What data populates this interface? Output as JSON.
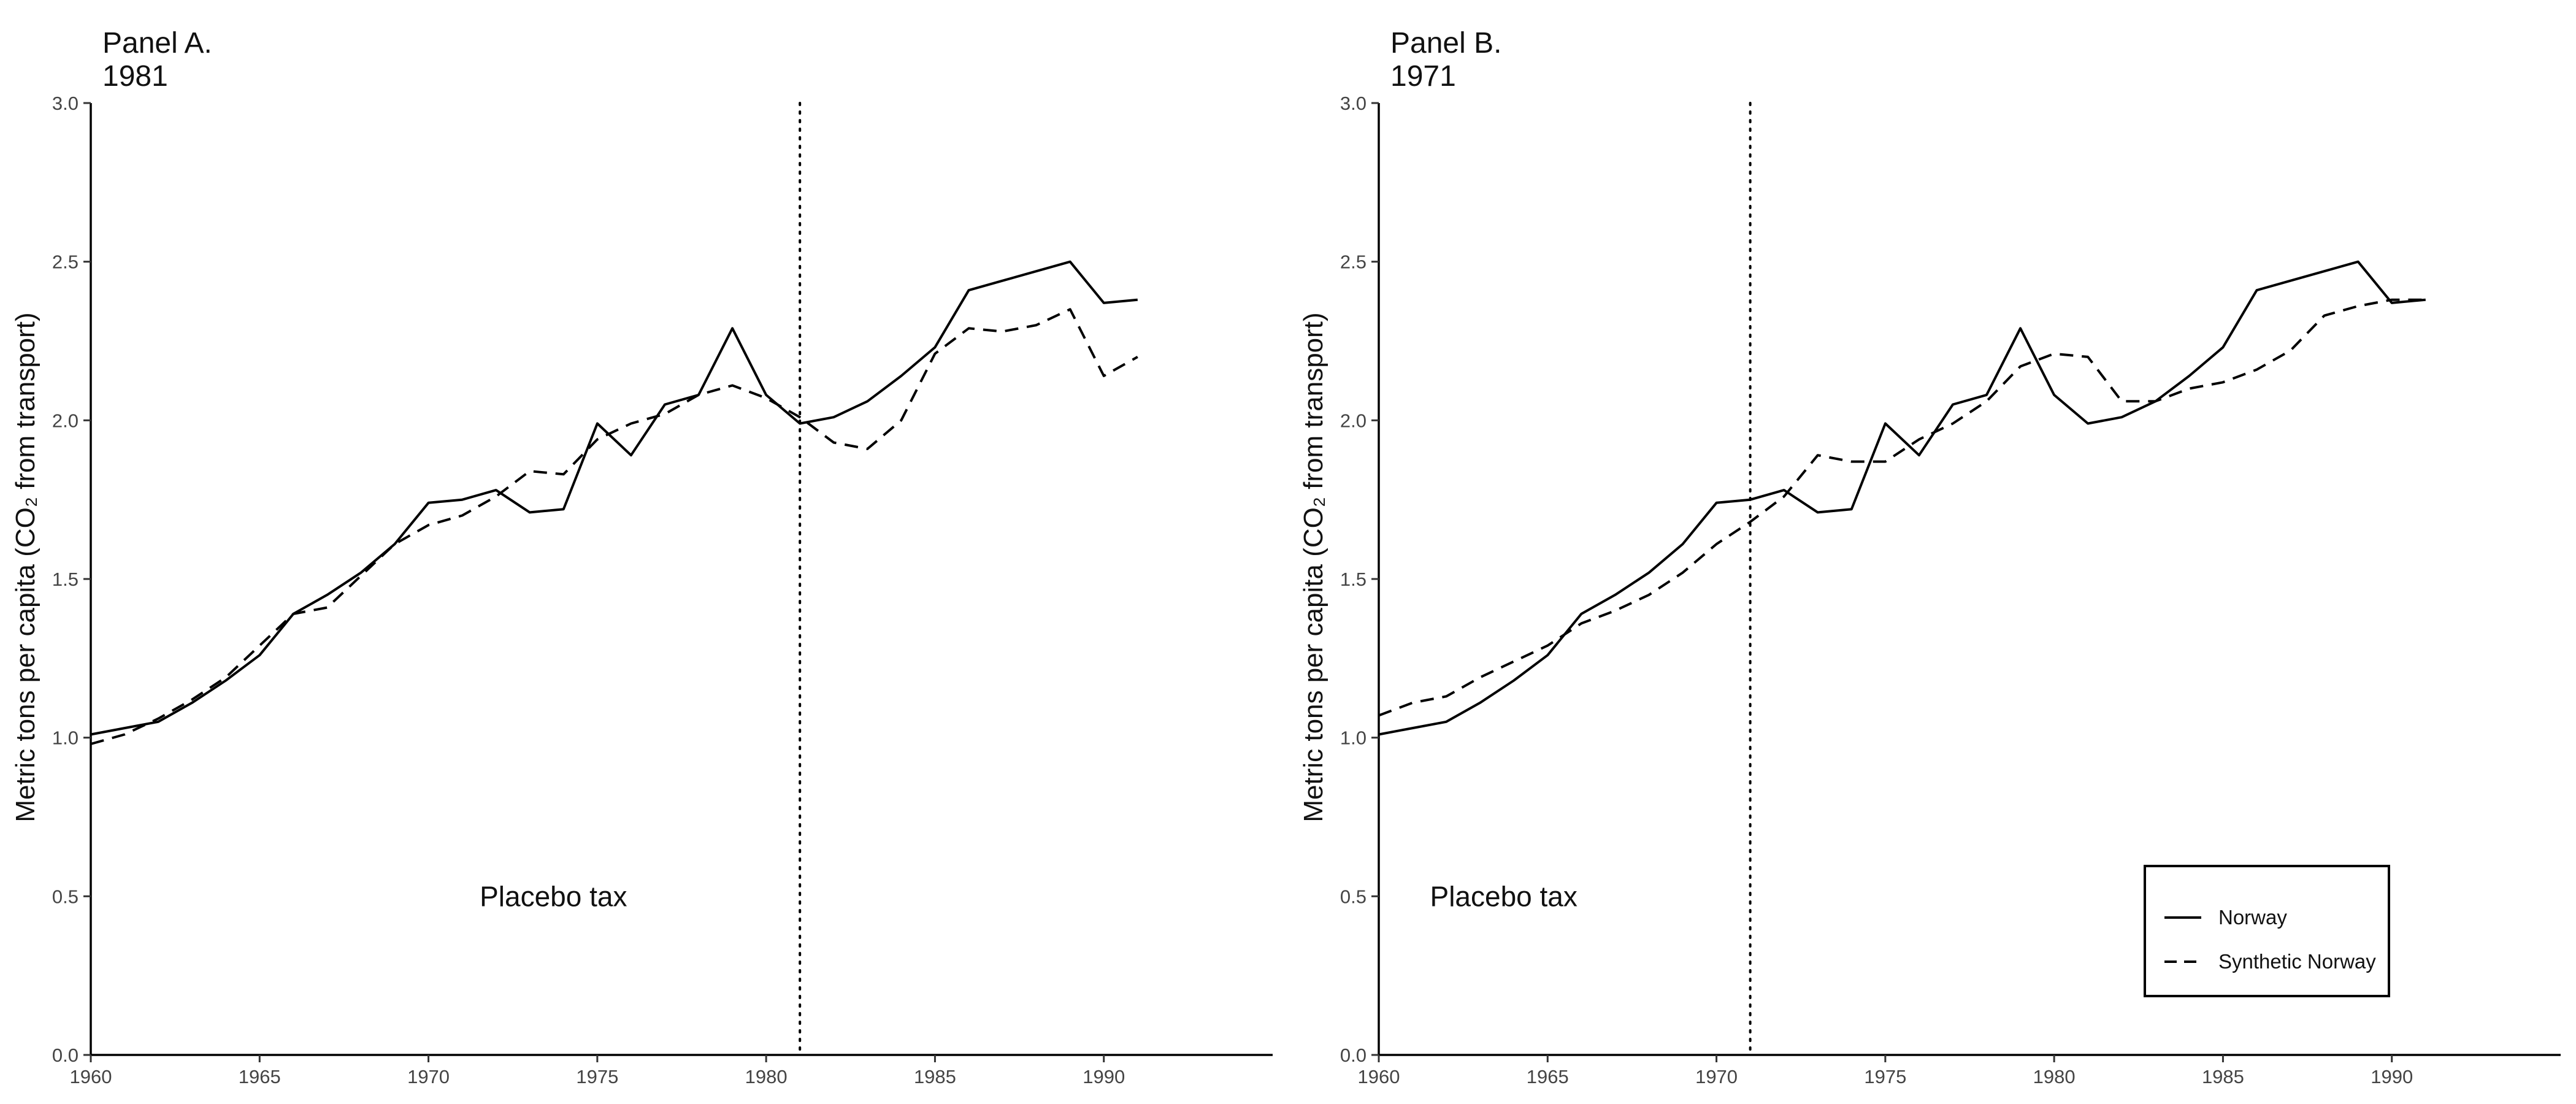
{
  "chart_data": [
    {
      "type": "line",
      "title": "Panel A.",
      "subtitle": "1981",
      "xlabel": "",
      "ylabel": "Metric tons per capita (CO₂ from transport)",
      "xlim": [
        1960,
        1995
      ],
      "ylim": [
        0,
        3.0
      ],
      "xticks": [
        1960,
        1965,
        1970,
        1975,
        1980,
        1985,
        1990
      ],
      "yticks": [
        "0.0",
        "0.5",
        "1.0",
        "1.5",
        "2.0",
        "2.5",
        "3.0"
      ],
      "grid": false,
      "reference_line": {
        "x": 1981,
        "style": "dotted"
      },
      "annotations": [
        {
          "text": "Placebo tax",
          "x": 1973.7,
          "y": 0.5
        }
      ],
      "legend": null,
      "x": [
        1960,
        1961,
        1962,
        1963,
        1964,
        1965,
        1966,
        1967,
        1968,
        1969,
        1970,
        1971,
        1972,
        1973,
        1974,
        1975,
        1976,
        1977,
        1978,
        1979,
        1980,
        1981,
        1982,
        1983,
        1984,
        1985,
        1986,
        1987,
        1988,
        1989,
        1990,
        1991
      ],
      "series": [
        {
          "name": "Norway",
          "style": "solid",
          "values": [
            1.01,
            1.03,
            1.05,
            1.11,
            1.18,
            1.26,
            1.39,
            1.45,
            1.52,
            1.61,
            1.74,
            1.75,
            1.78,
            1.71,
            1.72,
            1.99,
            1.89,
            2.05,
            2.08,
            2.29,
            2.08,
            1.99,
            2.01,
            2.06,
            2.14,
            2.23,
            2.41,
            2.44,
            2.47,
            2.5,
            2.37,
            2.38
          ]
        },
        {
          "name": "Synthetic Norway",
          "style": "dashed",
          "values": [
            0.98,
            1.01,
            1.06,
            1.12,
            1.19,
            1.29,
            1.39,
            1.41,
            1.51,
            1.61,
            1.67,
            1.7,
            1.76,
            1.84,
            1.83,
            1.94,
            1.99,
            2.02,
            2.08,
            2.11,
            2.07,
            2.01,
            1.93,
            1.91,
            2.0,
            2.21,
            2.29,
            2.28,
            2.3,
            2.35,
            2.14,
            2.2
          ]
        }
      ]
    },
    {
      "type": "line",
      "title": "Panel B.",
      "subtitle": "1971",
      "xlabel": "",
      "ylabel": "Metric tons per capita (CO₂ from transport)",
      "xlim": [
        1960,
        1995
      ],
      "ylim": [
        0,
        3.0
      ],
      "xticks": [
        1960,
        1965,
        1970,
        1975,
        1980,
        1985,
        1990
      ],
      "yticks": [
        "0.0",
        "0.5",
        "1.0",
        "1.5",
        "2.0",
        "2.5",
        "3.0"
      ],
      "grid": false,
      "reference_line": {
        "x": 1971,
        "style": "dotted"
      },
      "annotations": [
        {
          "text": "Placebo tax",
          "x": 1963.7,
          "y": 0.5
        }
      ],
      "legend": {
        "position": "bottom-right",
        "entries": [
          {
            "label": "Norway",
            "style": "solid"
          },
          {
            "label": "Synthetic Norway",
            "style": "dashed"
          }
        ]
      },
      "x": [
        1960,
        1961,
        1962,
        1963,
        1964,
        1965,
        1966,
        1967,
        1968,
        1969,
        1970,
        1971,
        1972,
        1973,
        1974,
        1975,
        1976,
        1977,
        1978,
        1979,
        1980,
        1981,
        1982,
        1983,
        1984,
        1985,
        1986,
        1987,
        1988,
        1989,
        1990,
        1991
      ],
      "series": [
        {
          "name": "Norway",
          "style": "solid",
          "values": [
            1.01,
            1.03,
            1.05,
            1.11,
            1.18,
            1.26,
            1.39,
            1.45,
            1.52,
            1.61,
            1.74,
            1.75,
            1.78,
            1.71,
            1.72,
            1.99,
            1.89,
            2.05,
            2.08,
            2.29,
            2.08,
            1.99,
            2.01,
            2.06,
            2.14,
            2.23,
            2.41,
            2.44,
            2.47,
            2.5,
            2.37,
            2.38
          ]
        },
        {
          "name": "Synthetic Norway",
          "style": "dashed",
          "values": [
            1.07,
            1.11,
            1.13,
            1.19,
            1.24,
            1.29,
            1.36,
            1.4,
            1.45,
            1.52,
            1.61,
            1.68,
            1.76,
            1.89,
            1.87,
            1.87,
            1.94,
            1.99,
            2.06,
            2.17,
            2.21,
            2.2,
            2.06,
            2.06,
            2.1,
            2.12,
            2.16,
            2.22,
            2.33,
            2.36,
            2.38,
            2.38
          ]
        }
      ]
    }
  ]
}
